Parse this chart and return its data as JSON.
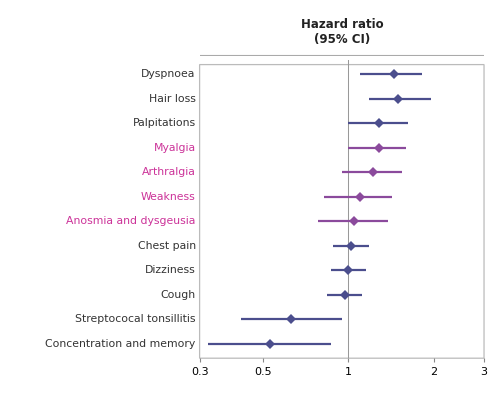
{
  "title": "Hazard ratio\n(95% CI)",
  "labels": [
    "Dyspnoea",
    "Hair loss",
    "Palpitations",
    "Myalgia",
    "Arthralgia",
    "Weakness",
    "Anosmia and dysgeusia",
    "Chest pain",
    "Dizziness",
    "Cough",
    "Streptococal tonsillitis",
    "Concentration and memory"
  ],
  "hr": [
    1.45,
    1.5,
    1.28,
    1.28,
    1.22,
    1.1,
    1.05,
    1.02,
    1.0,
    0.97,
    0.63,
    0.53
  ],
  "ci_low": [
    1.1,
    1.18,
    1.0,
    1.0,
    0.95,
    0.82,
    0.78,
    0.88,
    0.87,
    0.84,
    0.42,
    0.32
  ],
  "ci_high": [
    1.82,
    1.95,
    1.62,
    1.6,
    1.55,
    1.42,
    1.38,
    1.18,
    1.15,
    1.12,
    0.95,
    0.87
  ],
  "color_normal": "#4B4E8D",
  "color_overlay": "#8B4A9C",
  "label_color_normal": "#333333",
  "label_color_overlay": "#CC3399",
  "overlay_indices": [
    3,
    4,
    5,
    6
  ],
  "background": "#FFFFFF",
  "xmin": 0.3,
  "xmax": 3.0,
  "xticks": [
    0.3,
    0.5,
    1,
    2,
    3
  ],
  "xtick_labels": [
    "0.3",
    "0.5",
    "1",
    "2",
    "3"
  ],
  "label_split": 0.38
}
